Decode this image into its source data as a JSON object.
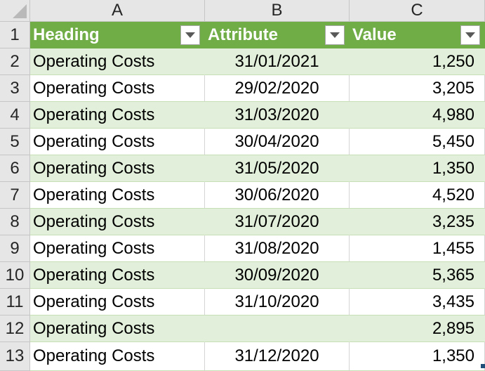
{
  "columns": [
    "A",
    "B",
    "C"
  ],
  "table": {
    "headers": [
      "Heading",
      "Attribute",
      "Value"
    ],
    "rows": [
      {
        "row": "2",
        "heading": "Operating Costs",
        "attribute": "31/01/2021",
        "value": "1,250"
      },
      {
        "row": "3",
        "heading": "Operating Costs",
        "attribute": "29/02/2020",
        "value": "3,205"
      },
      {
        "row": "4",
        "heading": "Operating Costs",
        "attribute": "31/03/2020",
        "value": "4,980"
      },
      {
        "row": "5",
        "heading": "Operating Costs",
        "attribute": "30/04/2020",
        "value": "5,450"
      },
      {
        "row": "6",
        "heading": "Operating Costs",
        "attribute": "31/05/2020",
        "value": "1,350"
      },
      {
        "row": "7",
        "heading": "Operating Costs",
        "attribute": "30/06/2020",
        "value": "4,520"
      },
      {
        "row": "8",
        "heading": "Operating Costs",
        "attribute": "31/07/2020",
        "value": "3,235"
      },
      {
        "row": "9",
        "heading": "Operating Costs",
        "attribute": "31/08/2020",
        "value": "1,455"
      },
      {
        "row": "10",
        "heading": "Operating Costs",
        "attribute": "30/09/2020",
        "value": "5,365"
      },
      {
        "row": "11",
        "heading": "Operating Costs",
        "attribute": "31/10/2020",
        "value": "3,435"
      },
      {
        "row": "12",
        "heading": "Operating Costs",
        "attribute": "",
        "value": "2,895"
      },
      {
        "row": "13",
        "heading": "Operating Costs",
        "attribute": "31/12/2020",
        "value": "1,350"
      }
    ]
  },
  "header_row_number": "1",
  "colors": {
    "header_fill": "#70ad47",
    "band_fill": "#e2efda",
    "grid_header": "#e6e6e6"
  },
  "icons": {
    "filter": "chevron-down-icon",
    "select_all": "select-all-corner-icon"
  }
}
